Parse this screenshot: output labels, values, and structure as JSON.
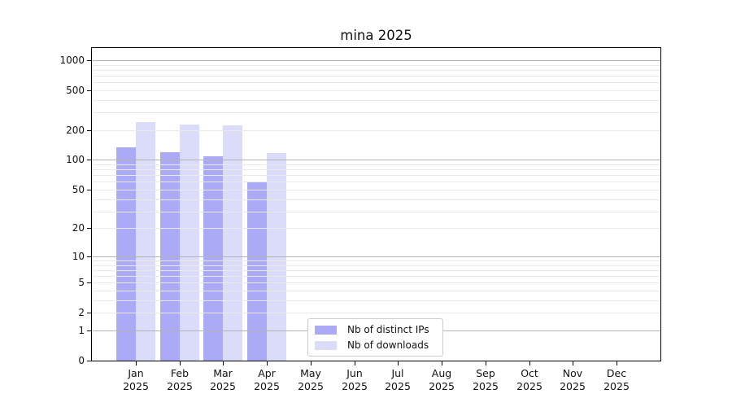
{
  "colors": {
    "background": "#ffffff",
    "spine": "#000000",
    "text": "#111111",
    "major_grid": "#b3b3b3",
    "minor_grid": "#e9e9e9",
    "legend_border": "#cccccc",
    "ips_bar": "#aaaaf7",
    "downloads_bar": "#dbdbfa"
  },
  "chart_data": {
    "type": "bar",
    "title": "mina 2025",
    "x": {
      "months": [
        "Jan",
        "Feb",
        "Mar",
        "Apr",
        "May",
        "Jun",
        "Jul",
        "Aug",
        "Sep",
        "Oct",
        "Nov",
        "Dec"
      ],
      "year": "2025"
    },
    "series": [
      {
        "name": "Nb of distinct IPs",
        "color": "#aaaaf7",
        "values": [
          134,
          120,
          109,
          60,
          0,
          0,
          0,
          0,
          0,
          0,
          0,
          0
        ]
      },
      {
        "name": "Nb of downloads",
        "color": "#dbdbfa",
        "values": [
          240,
          228,
          223,
          118,
          0,
          0,
          0,
          0,
          0,
          0,
          0,
          0
        ]
      }
    ],
    "y_axis": {
      "scale": "log1p",
      "tick_values": [
        0,
        1,
        2,
        5,
        10,
        20,
        50,
        100,
        200,
        500,
        1000
      ],
      "tick_labels": [
        "0",
        "1",
        "2",
        "5",
        "10",
        "20",
        "50",
        "100",
        "200",
        "500",
        "1000"
      ],
      "major_grid_values": [
        1,
        10,
        100,
        1000
      ],
      "minor_grid_values": [
        2,
        3,
        4,
        5,
        6,
        7,
        8,
        9,
        20,
        30,
        40,
        50,
        60,
        70,
        80,
        90,
        200,
        300,
        400,
        500,
        600,
        700,
        800,
        900
      ],
      "range_max": 1343
    },
    "legend": {
      "position": "lower-center",
      "items": [
        "Nb of distinct IPs",
        "Nb of downloads"
      ]
    },
    "grid": true
  }
}
